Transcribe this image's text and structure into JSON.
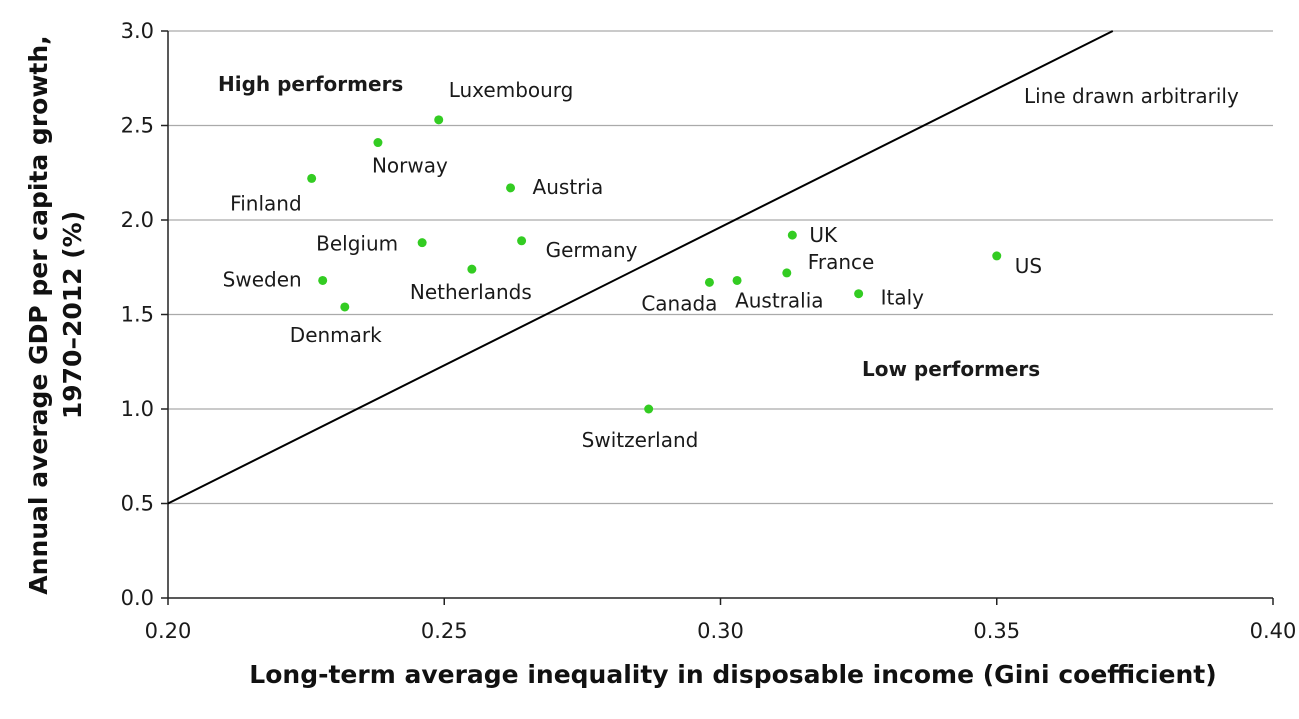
{
  "chart_data": {
    "type": "scatter",
    "xlabel": "Long-term average inequality in disposable income (Gini coefficient)",
    "ylabel_lines": [
      "Annual average GDP per capita growth,",
      "1970–2012 (%)"
    ],
    "xlim": [
      0.2,
      0.4
    ],
    "ylim": [
      0.0,
      3.0
    ],
    "x_ticks": [
      "0.20",
      "0.25",
      "0.30",
      "0.35",
      "0.40"
    ],
    "y_ticks": [
      "0.0",
      "0.5",
      "1.0",
      "1.5",
      "2.0",
      "2.5",
      "3.0"
    ],
    "grid": "horizontal",
    "point_color": "#33cc22",
    "points": [
      {
        "label": "Luxembourg",
        "x": 0.249,
        "y": 2.53
      },
      {
        "label": "Norway",
        "x": 0.238,
        "y": 2.41
      },
      {
        "label": "Finland",
        "x": 0.226,
        "y": 2.22
      },
      {
        "label": "Austria",
        "x": 0.262,
        "y": 2.17
      },
      {
        "label": "Belgium",
        "x": 0.246,
        "y": 1.88
      },
      {
        "label": "Germany",
        "x": 0.264,
        "y": 1.89
      },
      {
        "label": "Sweden",
        "x": 0.228,
        "y": 1.68
      },
      {
        "label": "Netherlands",
        "x": 0.255,
        "y": 1.74
      },
      {
        "label": "Denmark",
        "x": 0.232,
        "y": 1.54
      },
      {
        "label": "UK",
        "x": 0.313,
        "y": 1.92
      },
      {
        "label": "France",
        "x": 0.312,
        "y": 1.72
      },
      {
        "label": "Canada",
        "x": 0.298,
        "y": 1.67
      },
      {
        "label": "Australia",
        "x": 0.303,
        "y": 1.68
      },
      {
        "label": "Italy",
        "x": 0.325,
        "y": 1.61
      },
      {
        "label": "US",
        "x": 0.35,
        "y": 1.81
      },
      {
        "label": "Switzerland",
        "x": 0.287,
        "y": 1.0
      }
    ],
    "reference_line": {
      "x1": 0.2,
      "y1": 0.5,
      "x2": 0.371,
      "y2": 3.0
    },
    "annotations": {
      "high": "High performers",
      "low": "Low performers",
      "line_note": "Line drawn arbitrarily"
    }
  }
}
